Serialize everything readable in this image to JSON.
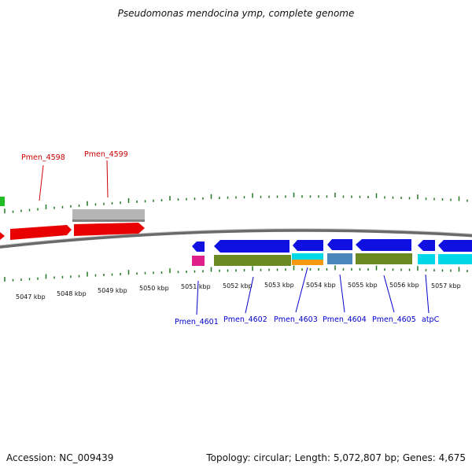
{
  "title": "Pseudomonas mendocina ymp, complete genome",
  "footer": {
    "accession": "Accession: NC_009439",
    "topology": "Topology: circular; Length: 5,072,807 bp; Genes: 4,675"
  },
  "colors": {
    "red": "#e80000",
    "gray": "#b5b5b5",
    "green": "#22bb22",
    "blue": "#1010e0",
    "magenta": "#e0208a",
    "olive": "#6b8a22",
    "orange": "#f59a10",
    "cyan": "#00d8e8",
    "steel": "#4a88bb",
    "tick": "#227722",
    "backbone": "#808080"
  },
  "kbp_labels": [
    "5047 kbp",
    "5048 kbp",
    "5049 kbp",
    "5050 kbp",
    "5051 kbp",
    "5052 kbp",
    "5053 kbp",
    "5054 kbp",
    "5055 kbp",
    "5056 kbp",
    "5057 kbp"
  ],
  "genes_top": [
    "Pmen_4598",
    "Pmen_4599"
  ],
  "genes_bottom": [
    "Pmen_4601",
    "Pmen_4602",
    "Pmen_4603",
    "Pmen_4604",
    "Pmen_4605",
    "atpC"
  ]
}
